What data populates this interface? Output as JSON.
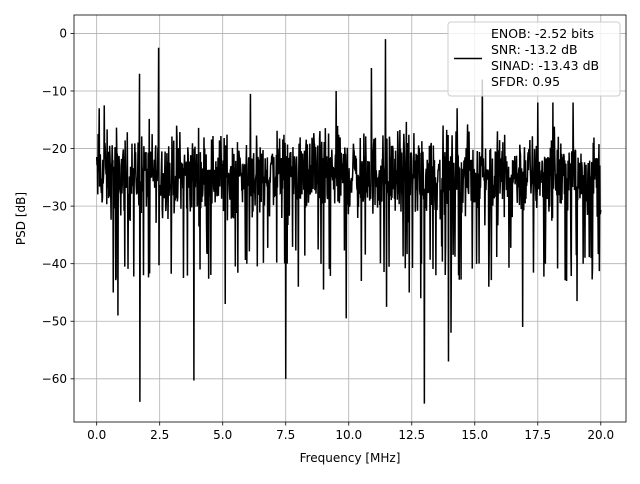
{
  "chart_data": {
    "type": "line",
    "title": "",
    "xlabel": "Frequency [MHz]",
    "ylabel": "PSD [dB]",
    "xlim": [
      -0.9,
      21.0
    ],
    "ylim": [
      -67.5,
      3.2
    ],
    "xticks": [
      0.0,
      2.5,
      5.0,
      7.5,
      10.0,
      12.5,
      15.0,
      17.5,
      20.0
    ],
    "xtick_labels": [
      "0.0",
      "2.5",
      "5.0",
      "7.5",
      "10.0",
      "12.5",
      "15.0",
      "17.5",
      "20.0"
    ],
    "yticks": [
      0,
      -10,
      -20,
      -30,
      -40,
      -50,
      -60
    ],
    "ytick_labels": [
      "0",
      "−10",
      "−20",
      "−30",
      "−40",
      "−50",
      "−60"
    ],
    "grid": true,
    "line_color": "#000000",
    "legend": {
      "placement": "upper-right",
      "lines": [
        "ENOB: -2.52 bits",
        "SNR: -13.2 dB",
        "SINAD: -13.43 dB",
        "SFDR: 0.95"
      ]
    },
    "x_range": [
      0.0,
      20.0
    ],
    "noise_floor_db": -25,
    "noise_envelope_db": [
      -35,
      -14
    ],
    "spikes": [
      {
        "x": 0.1,
        "y": -13
      },
      {
        "x": 0.3,
        "y": -12.5
      },
      {
        "x": 0.65,
        "y": -45
      },
      {
        "x": 0.85,
        "y": -49
      },
      {
        "x": 1.7,
        "y": -7
      },
      {
        "x": 1.72,
        "y": -64
      },
      {
        "x": 1.85,
        "y": -42
      },
      {
        "x": 2.45,
        "y": -2.5
      },
      {
        "x": 3.85,
        "y": -60.3
      },
      {
        "x": 4.1,
        "y": -41
      },
      {
        "x": 5.1,
        "y": -47
      },
      {
        "x": 5.95,
        "y": -40
      },
      {
        "x": 6.1,
        "y": -10.5
      },
      {
        "x": 7.5,
        "y": -60
      },
      {
        "x": 7.55,
        "y": -40
      },
      {
        "x": 8.0,
        "y": -44
      },
      {
        "x": 9.0,
        "y": -44.5
      },
      {
        "x": 9.5,
        "y": -10
      },
      {
        "x": 9.9,
        "y": -49.5
      },
      {
        "x": 10.5,
        "y": -43
      },
      {
        "x": 10.9,
        "y": -6
      },
      {
        "x": 11.45,
        "y": -1
      },
      {
        "x": 11.5,
        "y": -47.5
      },
      {
        "x": 12.4,
        "y": -45
      },
      {
        "x": 12.85,
        "y": -46
      },
      {
        "x": 13.0,
        "y": -64.3
      },
      {
        "x": 13.45,
        "y": -42
      },
      {
        "x": 13.95,
        "y": -57
      },
      {
        "x": 14.05,
        "y": -52
      },
      {
        "x": 14.3,
        "y": -13
      },
      {
        "x": 15.3,
        "y": -8
      },
      {
        "x": 15.55,
        "y": -44
      },
      {
        "x": 16.9,
        "y": -51
      },
      {
        "x": 17.5,
        "y": -12
      },
      {
        "x": 17.8,
        "y": -40
      },
      {
        "x": 18.1,
        "y": -12
      },
      {
        "x": 18.65,
        "y": -43
      },
      {
        "x": 18.9,
        "y": -12
      },
      {
        "x": 19.05,
        "y": -46.5
      },
      {
        "x": 19.3,
        "y": -40
      }
    ]
  }
}
